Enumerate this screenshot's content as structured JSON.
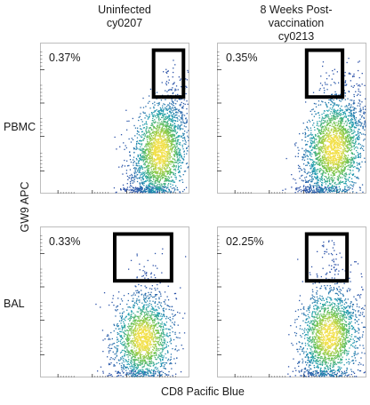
{
  "columns": [
    {
      "title_lines": [
        "Uninfected",
        "cy0207"
      ]
    },
    {
      "title_lines": [
        "8 Weeks Post-",
        "vaccination",
        "cy0213"
      ]
    }
  ],
  "rows": [
    {
      "label": "PBMC"
    },
    {
      "label": "BAL"
    }
  ],
  "ylabel": "GW9 APC",
  "xlabel": "CD8 Pacific Blue",
  "chart_data": [
    {
      "type": "scatter",
      "id": "pbmc-uninfected",
      "row": "PBMC",
      "column": "Uninfected cy0207",
      "gate_percent": "0.37%",
      "gate": {
        "x": [
          0.76,
          0.96
        ],
        "y": [
          0.64,
          0.95
        ]
      },
      "population": {
        "cx": 0.8,
        "cy": 0.28,
        "sx": 0.09,
        "sy": 0.17,
        "skew": 0.55,
        "n": 2400
      }
    },
    {
      "type": "scatter",
      "id": "pbmc-vaccinated",
      "row": "PBMC",
      "column": "8 Weeks Post-vaccination cy0213",
      "gate_percent": "0.35%",
      "gate": {
        "x": [
          0.6,
          0.84
        ],
        "y": [
          0.64,
          0.95
        ]
      },
      "population": {
        "cx": 0.78,
        "cy": 0.3,
        "sx": 0.1,
        "sy": 0.17,
        "skew": 0.55,
        "n": 2400
      }
    },
    {
      "type": "scatter",
      "id": "bal-uninfected",
      "row": "BAL",
      "column": "Uninfected cy0207",
      "gate_percent": "0.33%",
      "gate": {
        "x": [
          0.5,
          0.88
        ],
        "y": [
          0.64,
          0.95
        ]
      },
      "population": {
        "cx": 0.69,
        "cy": 0.26,
        "sx": 0.1,
        "sy": 0.14,
        "skew": 0.2,
        "n": 1800
      }
    },
    {
      "type": "scatter",
      "id": "bal-vaccinated",
      "row": "BAL",
      "column": "8 Weeks Post-vaccination cy0213",
      "gate_percent": "02.25%",
      "gate": {
        "x": [
          0.6,
          0.87
        ],
        "y": [
          0.64,
          0.95
        ]
      },
      "population": {
        "cx": 0.75,
        "cy": 0.28,
        "sx": 0.1,
        "sy": 0.15,
        "skew": 0.25,
        "n": 2000
      }
    }
  ],
  "colors": {
    "low": "#2c4fa8",
    "mid": "#1f9fb0",
    "high_mid": "#6cc24a",
    "high": "#f2e04a",
    "gate": "#000000"
  }
}
